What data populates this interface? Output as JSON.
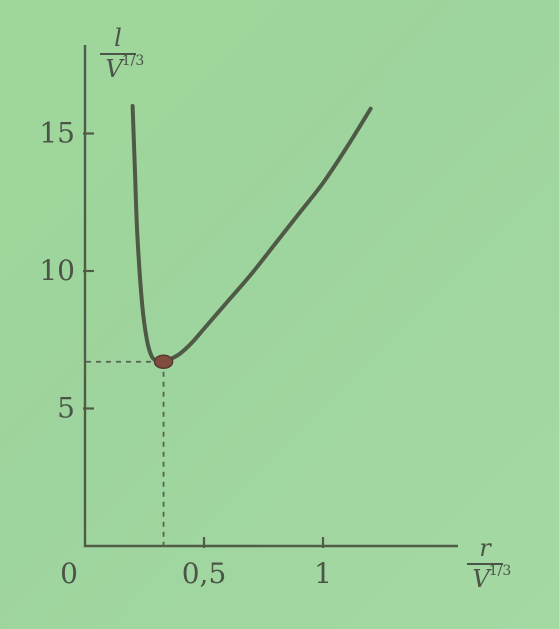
{
  "chart_data": {
    "type": "line",
    "title": "",
    "x_label": "r/V^(1/3)",
    "y_label": "l/V^(1/3)",
    "x_label_parts": {
      "num": "r",
      "den": "V",
      "den_exp": "1/3"
    },
    "y_label_parts": {
      "num": "l",
      "den": "V",
      "den_exp": "1/3"
    },
    "x_ticks": [
      {
        "value": 0,
        "label": "0"
      },
      {
        "value": 0.5,
        "label": "0,5"
      },
      {
        "value": 1,
        "label": "1"
      }
    ],
    "y_ticks": [
      {
        "value": 5,
        "label": "5"
      },
      {
        "value": 10,
        "label": "10"
      },
      {
        "value": 15,
        "label": "15"
      }
    ],
    "xlim": [
      0,
      1.55
    ],
    "ylim": [
      0,
      18
    ],
    "series": [
      {
        "name": "",
        "x": [
          0.2,
          0.21,
          0.22,
          0.24,
          0.26,
          0.28,
          0.3,
          0.33,
          0.36,
          0.4,
          0.45,
          0.5,
          0.6,
          0.7,
          0.8,
          0.9,
          1.0,
          1.1,
          1.2
        ],
        "y": [
          16.0,
          13.6,
          11.3,
          8.8,
          7.5,
          6.9,
          6.75,
          6.7,
          6.8,
          7.0,
          7.4,
          7.9,
          8.9,
          9.9,
          11.0,
          12.1,
          13.2,
          14.5,
          15.9
        ]
      }
    ],
    "highlight_point": {
      "x": 0.33,
      "y": 6.7
    }
  }
}
